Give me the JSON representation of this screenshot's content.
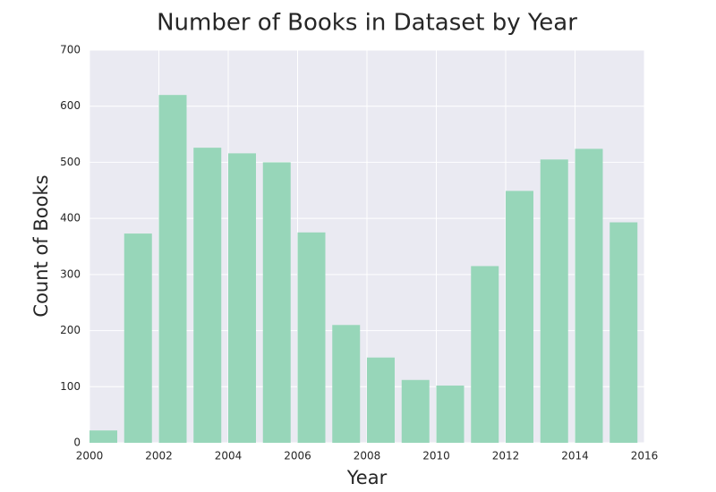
{
  "chart_data": {
    "type": "bar",
    "title": "Number of Books in Dataset by Year",
    "xlabel": "Year",
    "ylabel": "Count of Books",
    "x": [
      2000,
      2001,
      2002,
      2003,
      2004,
      2005,
      2006,
      2007,
      2008,
      2009,
      2010,
      2011,
      2012,
      2013,
      2014,
      2015
    ],
    "values": [
      22,
      373,
      620,
      526,
      516,
      500,
      375,
      210,
      152,
      112,
      102,
      315,
      449,
      505,
      524,
      393
    ],
    "xlim": [
      2000,
      2016
    ],
    "ylim": [
      0,
      700
    ],
    "xticks": [
      "2000",
      "2002",
      "2004",
      "2006",
      "2008",
      "2010",
      "2012",
      "2014",
      "2016"
    ],
    "yticks": [
      "0",
      "100",
      "200",
      "300",
      "400",
      "500",
      "600",
      "700"
    ],
    "grid": true,
    "legend": "none",
    "colors": {
      "bar": "#97d6b9",
      "plot_background": "#eaeaf2",
      "grid": "#ffffff",
      "text": "#262626"
    }
  }
}
